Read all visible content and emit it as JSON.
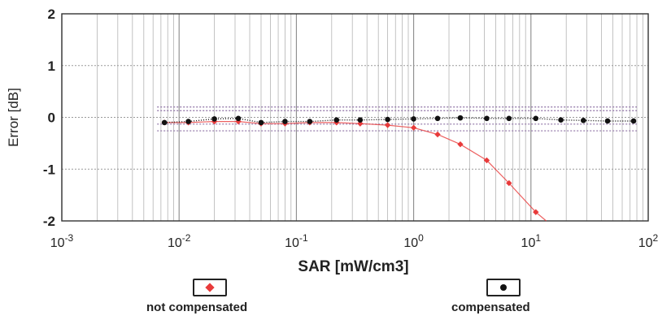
{
  "chart_data": {
    "type": "scatter",
    "xscale": "log",
    "xlabel": "SAR [mW/cm3]",
    "ylabel": "Error [dB]",
    "xlim": [
      0.001,
      100
    ],
    "ylim": [
      -2,
      2
    ],
    "xticks": [
      {
        "base": "10",
        "exp": "-3",
        "value": 0.001
      },
      {
        "base": "10",
        "exp": "-2",
        "value": 0.01
      },
      {
        "base": "10",
        "exp": "-1",
        "value": 0.1
      },
      {
        "base": "10",
        "exp": "0",
        "value": 1
      },
      {
        "base": "10",
        "exp": "1",
        "value": 10
      },
      {
        "base": "10",
        "exp": "2",
        "value": 100
      }
    ],
    "yticks": [
      {
        "label": "2",
        "value": 2
      },
      {
        "label": "1",
        "value": 1
      },
      {
        "label": "0",
        "value": 0
      },
      {
        "label": "-1",
        "value": -1
      },
      {
        "label": "-2",
        "value": -2
      }
    ],
    "grid": true,
    "legend_position": "bottom",
    "reference_bands": [
      -0.26,
      -0.13,
      0.13,
      0.2
    ],
    "series": [
      {
        "name": "not compensated",
        "color": "#e83a3a",
        "marker": "diamond",
        "x": [
          0.0075,
          0.012,
          0.02,
          0.032,
          0.05,
          0.08,
          0.13,
          0.22,
          0.35,
          0.6,
          1.0,
          1.6,
          2.5,
          4.2,
          6.5,
          11
        ],
        "y": [
          -0.1,
          -0.1,
          -0.08,
          -0.08,
          -0.12,
          -0.12,
          -0.1,
          -0.1,
          -0.12,
          -0.15,
          -0.2,
          -0.33,
          -0.52,
          -0.83,
          -1.27,
          -1.83
        ]
      },
      {
        "name": "compensated",
        "color": "#111111",
        "marker": "dot",
        "x": [
          0.0075,
          0.012,
          0.02,
          0.032,
          0.05,
          0.08,
          0.13,
          0.22,
          0.35,
          0.6,
          1.0,
          1.6,
          2.5,
          4.2,
          6.5,
          11,
          18,
          28,
          45,
          75
        ],
        "y": [
          -0.1,
          -0.08,
          -0.03,
          -0.02,
          -0.1,
          -0.08,
          -0.08,
          -0.05,
          -0.05,
          -0.04,
          -0.03,
          -0.02,
          -0.01,
          -0.02,
          -0.02,
          -0.02,
          -0.05,
          -0.06,
          -0.07,
          -0.07
        ]
      }
    ]
  }
}
